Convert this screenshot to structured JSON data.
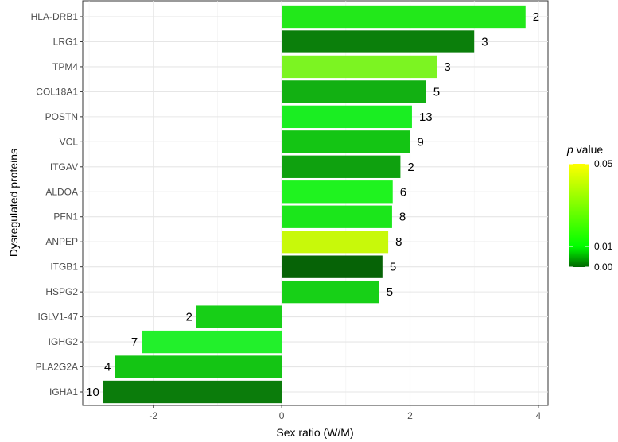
{
  "chart_data": {
    "type": "bar",
    "orientation": "horizontal",
    "xlabel": "Sex ratio (W/M)",
    "ylabel": "Dysregulated proteins",
    "xlim": [
      -3.1,
      4.15
    ],
    "x_ticks": [
      -2,
      0,
      2,
      4
    ],
    "grid": true,
    "bars": [
      {
        "category": "HLA-DRB1",
        "value": 3.8,
        "label": "2",
        "color": "#22e81a"
      },
      {
        "category": "LRG1",
        "value": 3.0,
        "label": "3",
        "color": "#0b7f0b"
      },
      {
        "category": "TPM4",
        "value": 2.42,
        "label": "3",
        "color": "#7cf422"
      },
      {
        "category": "COL18A1",
        "value": 2.25,
        "label": "5",
        "color": "#12b012"
      },
      {
        "category": "POSTN",
        "value": 2.03,
        "label": "13",
        "color": "#1aee22"
      },
      {
        "category": "VCL",
        "value": 2.0,
        "label": "9",
        "color": "#14c514"
      },
      {
        "category": "ITGAV",
        "value": 1.85,
        "label": "2",
        "color": "#0fa10f"
      },
      {
        "category": "ALDOA",
        "value": 1.73,
        "label": "6",
        "color": "#1ff31f"
      },
      {
        "category": "PFN1",
        "value": 1.72,
        "label": "8",
        "color": "#1be61b"
      },
      {
        "category": "ANPEP",
        "value": 1.66,
        "label": "8",
        "color": "#c8f90a"
      },
      {
        "category": "ITGB1",
        "value": 1.57,
        "label": "5",
        "color": "#066306"
      },
      {
        "category": "HSPG2",
        "value": 1.52,
        "label": "5",
        "color": "#17d017"
      },
      {
        "category": "IGLV1-47",
        "value": -1.33,
        "label": "2",
        "color": "#17cf17"
      },
      {
        "category": "IGHG2",
        "value": -2.18,
        "label": "7",
        "color": "#22f02b"
      },
      {
        "category": "PLA2G2A",
        "value": -2.6,
        "label": "4",
        "color": "#14c514"
      },
      {
        "category": "IGHA1",
        "value": -2.78,
        "label": "10",
        "color": "#0b7c0b"
      }
    ],
    "legend": {
      "title_italic": "p",
      "title_rest": " value",
      "placement": "right",
      "gradient_colors": [
        "#006400",
        "#00ff00",
        "#ffff00"
      ],
      "ticks": [
        {
          "value": 0.05,
          "label": "0.05"
        },
        {
          "value": 0.01,
          "label": "0.01"
        },
        {
          "value": 0.0,
          "label": "0.00"
        }
      ]
    }
  }
}
